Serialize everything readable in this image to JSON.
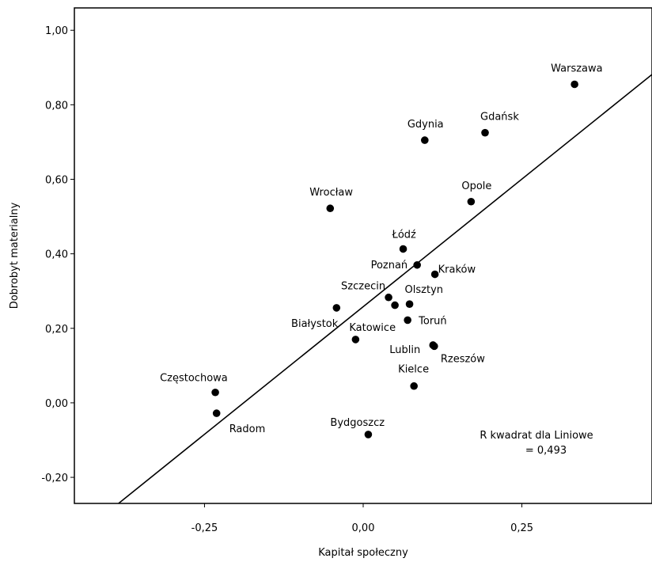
{
  "chart_data": {
    "type": "scatter",
    "xlabel": "Kapitał społeczny",
    "ylabel": "Dobrobyt materialny",
    "xlim": [
      -0.455,
      0.455
    ],
    "ylim": [
      -0.27,
      1.06
    ],
    "x_ticks": [
      -0.25,
      0.0,
      0.25
    ],
    "x_tick_labels": [
      "-0,25",
      "0,00",
      "0,25"
    ],
    "y_ticks": [
      -0.2,
      0.0,
      0.2,
      0.4,
      0.6,
      0.8,
      1.0
    ],
    "y_tick_labels": [
      "-0,20",
      "0,00",
      "0,20",
      "0,40",
      "0,60",
      "0,80",
      "1,00"
    ],
    "grid": false,
    "points": [
      {
        "label": "Warszawa",
        "x": 0.333,
        "y": 0.855
      },
      {
        "label": "Gdańsk",
        "x": 0.192,
        "y": 0.725
      },
      {
        "label": "Gdynia",
        "x": 0.097,
        "y": 0.705
      },
      {
        "label": "Opole",
        "x": 0.17,
        "y": 0.54
      },
      {
        "label": "Wrocław",
        "x": -0.052,
        "y": 0.522
      },
      {
        "label": "Łódź",
        "x": 0.063,
        "y": 0.413
      },
      {
        "label": "Poznań",
        "x": 0.085,
        "y": 0.37
      },
      {
        "label": "Kraków",
        "x": 0.113,
        "y": 0.345
      },
      {
        "label": "Szczecin",
        "x": 0.04,
        "y": 0.283
      },
      {
        "label": "Olsztyn",
        "x": 0.073,
        "y": 0.265
      },
      {
        "label": "",
        "x": 0.05,
        "y": 0.262
      },
      {
        "label": "Białystok",
        "x": -0.042,
        "y": 0.255
      },
      {
        "label": "Toruń",
        "x": 0.07,
        "y": 0.222
      },
      {
        "label": "Katowice",
        "x": -0.012,
        "y": 0.17
      },
      {
        "label": "Lublin",
        "x": 0.11,
        "y": 0.155
      },
      {
        "label": "Rzeszów",
        "x": 0.112,
        "y": 0.152
      },
      {
        "label": "Kielce",
        "x": 0.08,
        "y": 0.045
      },
      {
        "label": "Częstochowa",
        "x": -0.233,
        "y": 0.028
      },
      {
        "label": "Radom",
        "x": -0.231,
        "y": -0.028
      },
      {
        "label": "Bydgoszcz",
        "x": 0.008,
        "y": -0.085
      }
    ],
    "fit_line": {
      "intercept": 0.258,
      "slope": 1.37
    },
    "annotation": [
      "R kwadrat dla Liniowe",
      "= 0,493"
    ]
  }
}
